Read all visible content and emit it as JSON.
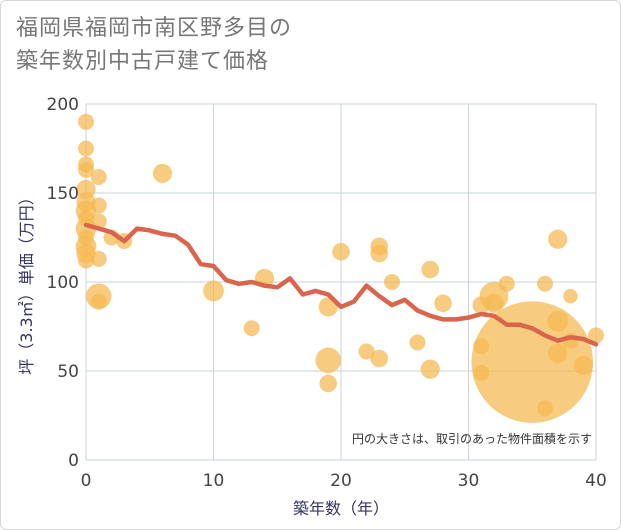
{
  "title_line1": "福岡県福岡市南区野多目の",
  "title_line2": "築年数別中古戸建て価格",
  "chart_data": {
    "type": "scatter",
    "title": "福岡県福岡市南区野多目の築年数別中古戸建て価格",
    "xlabel": "築年数（年）",
    "ylabel": "坪（3.3㎡）単価（万円）",
    "xlim": [
      0,
      40
    ],
    "ylim": [
      0,
      200
    ],
    "xticks": [
      0,
      10,
      20,
      30,
      40
    ],
    "yticks": [
      0,
      50,
      100,
      150,
      200
    ],
    "grid": true,
    "note": "円の大きさは、取引のあった物件面積を示す",
    "colors": {
      "bubble": "#f5b84f",
      "line": "#d9654f"
    },
    "bubbles": [
      {
        "x": 0,
        "y": 190,
        "size": 1
      },
      {
        "x": 0,
        "y": 175,
        "size": 1
      },
      {
        "x": 0,
        "y": 166,
        "size": 1
      },
      {
        "x": 0,
        "y": 163,
        "size": 1
      },
      {
        "x": 0,
        "y": 152,
        "size": 1.2
      },
      {
        "x": 0,
        "y": 145,
        "size": 1.2
      },
      {
        "x": 0,
        "y": 140,
        "size": 1.3
      },
      {
        "x": 0,
        "y": 136,
        "size": 1
      },
      {
        "x": 0,
        "y": 130,
        "size": 1.3
      },
      {
        "x": 0,
        "y": 125,
        "size": 1
      },
      {
        "x": 0,
        "y": 120,
        "size": 1.3
      },
      {
        "x": 0,
        "y": 116,
        "size": 1.2
      },
      {
        "x": 0,
        "y": 112,
        "size": 1
      },
      {
        "x": 1,
        "y": 159,
        "size": 1
      },
      {
        "x": 1,
        "y": 143,
        "size": 1
      },
      {
        "x": 1,
        "y": 134,
        "size": 1
      },
      {
        "x": 1,
        "y": 113,
        "size": 1
      },
      {
        "x": 1,
        "y": 92,
        "size": 1.6
      },
      {
        "x": 1,
        "y": 89,
        "size": 1
      },
      {
        "x": 2,
        "y": 125,
        "size": 1
      },
      {
        "x": 3,
        "y": 123,
        "size": 1
      },
      {
        "x": 6,
        "y": 161,
        "size": 1.2
      },
      {
        "x": 10,
        "y": 95,
        "size": 1.3
      },
      {
        "x": 13,
        "y": 74,
        "size": 1
      },
      {
        "x": 14,
        "y": 102,
        "size": 1.2
      },
      {
        "x": 19,
        "y": 86,
        "size": 1.2
      },
      {
        "x": 19,
        "y": 56,
        "size": 1.6
      },
      {
        "x": 19,
        "y": 43,
        "size": 1.1
      },
      {
        "x": 20,
        "y": 117,
        "size": 1.1
      },
      {
        "x": 22,
        "y": 61,
        "size": 1
      },
      {
        "x": 23,
        "y": 120,
        "size": 1.1
      },
      {
        "x": 23,
        "y": 116,
        "size": 1.1
      },
      {
        "x": 23,
        "y": 57,
        "size": 1.1
      },
      {
        "x": 24,
        "y": 100,
        "size": 1
      },
      {
        "x": 26,
        "y": 66,
        "size": 1
      },
      {
        "x": 27,
        "y": 107,
        "size": 1.1
      },
      {
        "x": 27,
        "y": 51,
        "size": 1.2
      },
      {
        "x": 28,
        "y": 88,
        "size": 1.1
      },
      {
        "x": 31,
        "y": 87,
        "size": 1.1
      },
      {
        "x": 31,
        "y": 64,
        "size": 1
      },
      {
        "x": 31,
        "y": 49,
        "size": 1
      },
      {
        "x": 32,
        "y": 88,
        "size": 1.2
      },
      {
        "x": 32,
        "y": 92,
        "size": 1.8
      },
      {
        "x": 33,
        "y": 99,
        "size": 1
      },
      {
        "x": 35,
        "y": 55,
        "size": 7.6
      },
      {
        "x": 36,
        "y": 99,
        "size": 1
      },
      {
        "x": 36,
        "y": 29,
        "size": 1
      },
      {
        "x": 37,
        "y": 124,
        "size": 1.2
      },
      {
        "x": 37,
        "y": 78,
        "size": 1.3
      },
      {
        "x": 37,
        "y": 60,
        "size": 1.2
      },
      {
        "x": 38,
        "y": 92,
        "size": 0.9
      },
      {
        "x": 38,
        "y": 67,
        "size": 1
      },
      {
        "x": 39,
        "y": 53,
        "size": 1.2
      },
      {
        "x": 40,
        "y": 70,
        "size": 1
      }
    ],
    "trend": {
      "x": [
        0,
        1,
        2,
        3,
        4,
        5,
        6,
        7,
        8,
        9,
        10,
        11,
        12,
        13,
        14,
        15,
        16,
        17,
        18,
        19,
        20,
        21,
        22,
        23,
        24,
        25,
        26,
        27,
        28,
        29,
        30,
        31,
        32,
        33,
        34,
        35,
        36,
        37,
        38,
        39,
        40
      ],
      "y": [
        132,
        130,
        128,
        123,
        130,
        129,
        127,
        126,
        121,
        110,
        109,
        101,
        99,
        100,
        98,
        97,
        102,
        93,
        95,
        93,
        86,
        89,
        98,
        92,
        87,
        90,
        84,
        81,
        79,
        79,
        80,
        82,
        81,
        76,
        76,
        74,
        70,
        67,
        69,
        68,
        65
      ]
    }
  }
}
